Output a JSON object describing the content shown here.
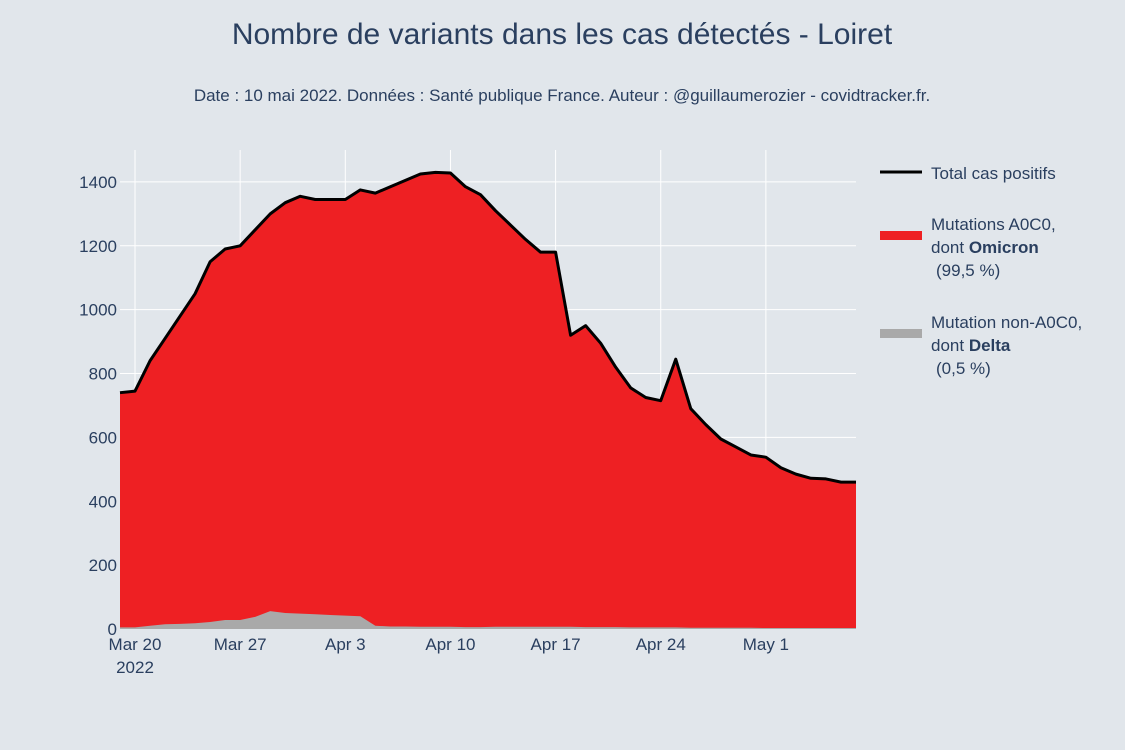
{
  "chart_data": {
    "type": "area",
    "title": "Nombre de variants dans les cas détectés - Loiret",
    "subtitle": "Date : 10 mai 2022. Données : Santé publique France. Auteur : @guillaumerozier - covidtracker.fr.",
    "x_start": "2022-03-19",
    "x_tick_labels": [
      {
        "date": "2022-03-20",
        "label": "Mar 20",
        "sublabel": "2022"
      },
      {
        "date": "2022-03-27",
        "label": "Mar 27",
        "sublabel": ""
      },
      {
        "date": "2022-04-03",
        "label": "Apr 3",
        "sublabel": ""
      },
      {
        "date": "2022-04-10",
        "label": "Apr 10",
        "sublabel": ""
      },
      {
        "date": "2022-04-17",
        "label": "Apr 17",
        "sublabel": ""
      },
      {
        "date": "2022-04-24",
        "label": "Apr 24",
        "sublabel": ""
      },
      {
        "date": "2022-05-01",
        "label": "May 1",
        "sublabel": ""
      }
    ],
    "ylim": [
      0,
      1500
    ],
    "y_ticks": [
      0,
      200,
      400,
      600,
      800,
      1000,
      1200,
      1400
    ],
    "grid": true,
    "legend_position": "right",
    "series": [
      {
        "name": "Total cas positifs",
        "kind": "line",
        "color": "#000000",
        "values": [
          740,
          745,
          840,
          910,
          980,
          1050,
          1150,
          1190,
          1200,
          1250,
          1300,
          1335,
          1355,
          1345,
          1345,
          1345,
          1375,
          1365,
          1385,
          1405,
          1425,
          1430,
          1428,
          1385,
          1360,
          1310,
          1265,
          1220,
          1180,
          1180,
          920,
          950,
          895,
          820,
          755,
          725,
          715,
          845,
          690,
          640,
          595,
          570,
          545,
          538,
          505,
          485,
          472,
          470,
          460,
          460
        ]
      },
      {
        "name": "Mutations A0C0,",
        "name_line2_prefix": "dont ",
        "name_line2_bold": "Omicron",
        "name_line3": "(99,5 %)",
        "kind": "area",
        "color": "#ee2023"
      },
      {
        "name": "Mutation non-A0C0,",
        "name_line2_prefix": "dont ",
        "name_line2_bold": "Delta",
        "name_line3": "(0,5 %)",
        "kind": "area",
        "color": "#a9a9a9",
        "values": [
          5,
          5,
          10,
          15,
          16,
          18,
          22,
          28,
          28,
          38,
          56,
          50,
          48,
          46,
          44,
          42,
          40,
          10,
          8,
          8,
          7,
          7,
          7,
          6,
          6,
          7,
          7,
          7,
          7,
          7,
          7,
          6,
          6,
          6,
          5,
          5,
          5,
          5,
          4,
          4,
          4,
          4,
          4,
          3,
          3,
          3,
          3,
          3,
          3,
          3
        ]
      }
    ]
  }
}
